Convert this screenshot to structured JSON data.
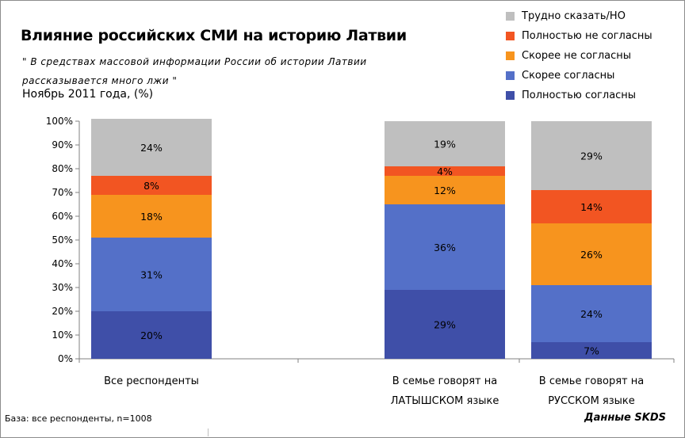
{
  "title": "Влияние российских СМИ на историю Латвии",
  "subtitle": "\" В средствах массовой информации России об истории Латвии рассказывается много лжи \"",
  "period": "Ноябрь 2011 года, (%)",
  "footer": {
    "base": "База: все респонденты, n=1008",
    "source": "Данные SKDS"
  },
  "colors": {
    "hard_to_say": "#BFBFBF",
    "fully_disagree": "#F25522",
    "rather_disagree": "#F7941E",
    "rather_agree": "#5470C8",
    "fully_agree": "#3F4FA8"
  },
  "chart_data": {
    "type": "bar",
    "stacked": true,
    "ylim": [
      0,
      100
    ],
    "yticks": [
      "0%",
      "10%",
      "20%",
      "30%",
      "40%",
      "50%",
      "60%",
      "70%",
      "80%",
      "90%",
      "100%"
    ],
    "categories": [
      [
        "Все респонденты"
      ],
      [
        "В семье говорят на",
        "ЛАТЫШСКОМ языке"
      ],
      [
        "В семье говорят на",
        "РУССКОМ языке"
      ]
    ],
    "series": [
      {
        "name": "Полностью согласны",
        "color": "#3F4FA8",
        "values": [
          20,
          29,
          7
        ],
        "labels": [
          "20%",
          "29%",
          "7%"
        ]
      },
      {
        "name": "Скорее согласны",
        "color": "#5470C8",
        "values": [
          31,
          36,
          24
        ],
        "labels": [
          "31%",
          "36%",
          "24%"
        ]
      },
      {
        "name": "Скорее не согласны",
        "color": "#F7941E",
        "values": [
          18,
          12,
          26
        ],
        "labels": [
          "18%",
          "12%",
          "26%"
        ]
      },
      {
        "name": "Полностью не согласны",
        "color": "#F25522",
        "values": [
          8,
          4,
          14
        ],
        "labels": [
          "8%",
          "4%",
          "14%"
        ]
      },
      {
        "name": "Трудно сказать/НО",
        "color": "#BFBFBF",
        "values": [
          24,
          19,
          29
        ],
        "labels": [
          "24%",
          "19%",
          "29%"
        ]
      }
    ],
    "legend": [
      "Трудно сказать/НО",
      "Полностью не согласны",
      "Скорее не согласны",
      "Скорее согласны",
      "Полностью согласны"
    ],
    "grid": false,
    "legend_position": "top-right"
  }
}
